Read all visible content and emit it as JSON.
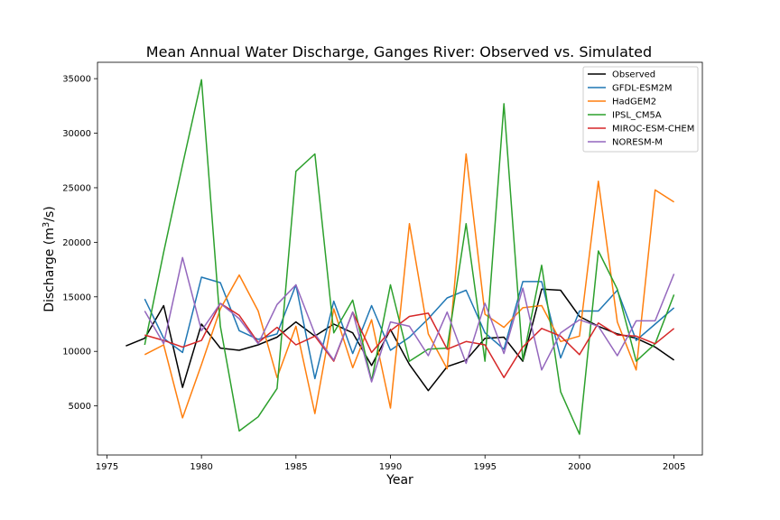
{
  "chart_data": {
    "type": "line",
    "title": "Mean Annual Water Discharge, Ganges River: Observed vs. Simulated",
    "xlabel": "Year",
    "ylabel_main": "Discharge (m",
    "ylabel_sup": "3",
    "ylabel_end": "/s)",
    "xlim": [
      1974.5,
      2006.5
    ],
    "ylim": [
      500,
      36500
    ],
    "xticks": [
      1975,
      1980,
      1985,
      1990,
      1995,
      2000,
      2005
    ],
    "yticks": [
      5000,
      10000,
      15000,
      20000,
      25000,
      30000,
      35000
    ],
    "legend_position": "top-right",
    "series": [
      {
        "name": "Observed",
        "color": "#000000",
        "x": [
          1976,
          1977,
          1978,
          1979,
          1980,
          1981,
          1982,
          1983,
          1984,
          1985,
          1986,
          1987,
          1988,
          1989,
          1990,
          1991,
          1992,
          1993,
          1994,
          1995,
          1996,
          1997,
          1998,
          1999,
          2000,
          2001,
          2002,
          2003,
          2004,
          2005
        ],
        "values": [
          10500,
          11200,
          14200,
          6700,
          12500,
          10300,
          10100,
          10600,
          11300,
          12700,
          11400,
          12500,
          11700,
          8700,
          12000,
          8800,
          6400,
          8600,
          9200,
          11200,
          11300,
          9100,
          15700,
          15600,
          13200,
          12300,
          11600,
          11200,
          10400,
          9200
        ]
      },
      {
        "name": "GFDL-ESM2M",
        "color": "#1f77b4",
        "x": [
          1977,
          1978,
          1979,
          1980,
          1981,
          1982,
          1983,
          1984,
          1985,
          1986,
          1987,
          1988,
          1989,
          1990,
          1991,
          1992,
          1993,
          1994,
          1995,
          1996,
          1997,
          1998,
          1999,
          2000,
          2001,
          2002,
          2003,
          2004,
          2005
        ],
        "values": [
          14800,
          11200,
          9900,
          16800,
          16300,
          11900,
          11100,
          11600,
          16100,
          7500,
          14600,
          9800,
          14200,
          10100,
          11300,
          13000,
          14900,
          15600,
          11700,
          10200,
          16400,
          16400,
          9400,
          13700,
          13700,
          15600,
          11000,
          12500,
          14000
        ]
      },
      {
        "name": "HadGEM2",
        "color": "#ff7f0e",
        "x": [
          1977,
          1978,
          1979,
          1980,
          1981,
          1982,
          1983,
          1984,
          1985,
          1986,
          1987,
          1988,
          1989,
          1990,
          1991,
          1992,
          1993,
          1994,
          1995,
          1996,
          1997,
          1998,
          1999,
          2000,
          2001,
          2002,
          2003,
          2004,
          2005
        ],
        "values": [
          9700,
          10600,
          3900,
          8800,
          13900,
          17000,
          13700,
          7600,
          12300,
          4300,
          13900,
          8500,
          12900,
          4800,
          21700,
          11600,
          8400,
          28100,
          13400,
          12200,
          14000,
          14200,
          10900,
          11400,
          25600,
          12700,
          8300,
          24800,
          23700
        ]
      },
      {
        "name": "IPSL_CM5A",
        "color": "#2ca02c",
        "x": [
          1977,
          1978,
          1979,
          1980,
          1981,
          1982,
          1983,
          1984,
          1985,
          1986,
          1987,
          1988,
          1989,
          1990,
          1991,
          1992,
          1993,
          1994,
          1995,
          1996,
          1997,
          1998,
          1999,
          2000,
          2001,
          2002,
          2003,
          2004,
          2005
        ],
        "values": [
          10600,
          19100,
          27100,
          34900,
          12300,
          2700,
          4000,
          6600,
          26500,
          28100,
          11700,
          14700,
          7300,
          16100,
          9100,
          10200,
          10300,
          21700,
          9100,
          32700,
          9200,
          17900,
          6300,
          2400,
          19200,
          15700,
          9100,
          10700,
          15200
        ]
      },
      {
        "name": "MIROC-ESM-CHEM",
        "color": "#d62728",
        "x": [
          1977,
          1978,
          1979,
          1980,
          1981,
          1982,
          1983,
          1984,
          1985,
          1986,
          1987,
          1988,
          1989,
          1990,
          1991,
          1992,
          1993,
          1994,
          1995,
          1996,
          1997,
          1998,
          1999,
          2000,
          2001,
          2002,
          2003,
          2004,
          2005
        ],
        "values": [
          11500,
          11000,
          10400,
          11000,
          14400,
          13300,
          10800,
          12200,
          10600,
          11400,
          9100,
          13600,
          9900,
          11900,
          13200,
          13500,
          10200,
          10900,
          10600,
          7600,
          10400,
          12100,
          11400,
          9700,
          12600,
          11500,
          11400,
          10700,
          12100
        ]
      },
      {
        "name": "NORESM-M",
        "color": "#9467bd",
        "x": [
          1977,
          1978,
          1979,
          1980,
          1981,
          1982,
          1983,
          1984,
          1985,
          1986,
          1987,
          1988,
          1989,
          1990,
          1991,
          1992,
          1993,
          1994,
          1995,
          1996,
          1997,
          1998,
          1999,
          2000,
          2001,
          2002,
          2003,
          2004,
          2005
        ],
        "values": [
          13700,
          10700,
          18600,
          11900,
          14400,
          13000,
          10700,
          14300,
          16100,
          11600,
          9200,
          13600,
          7200,
          12700,
          12300,
          9600,
          13600,
          8900,
          14400,
          9800,
          15800,
          8300,
          11700,
          12900,
          12300,
          9600,
          12800,
          12800,
          17100
        ]
      }
    ]
  }
}
